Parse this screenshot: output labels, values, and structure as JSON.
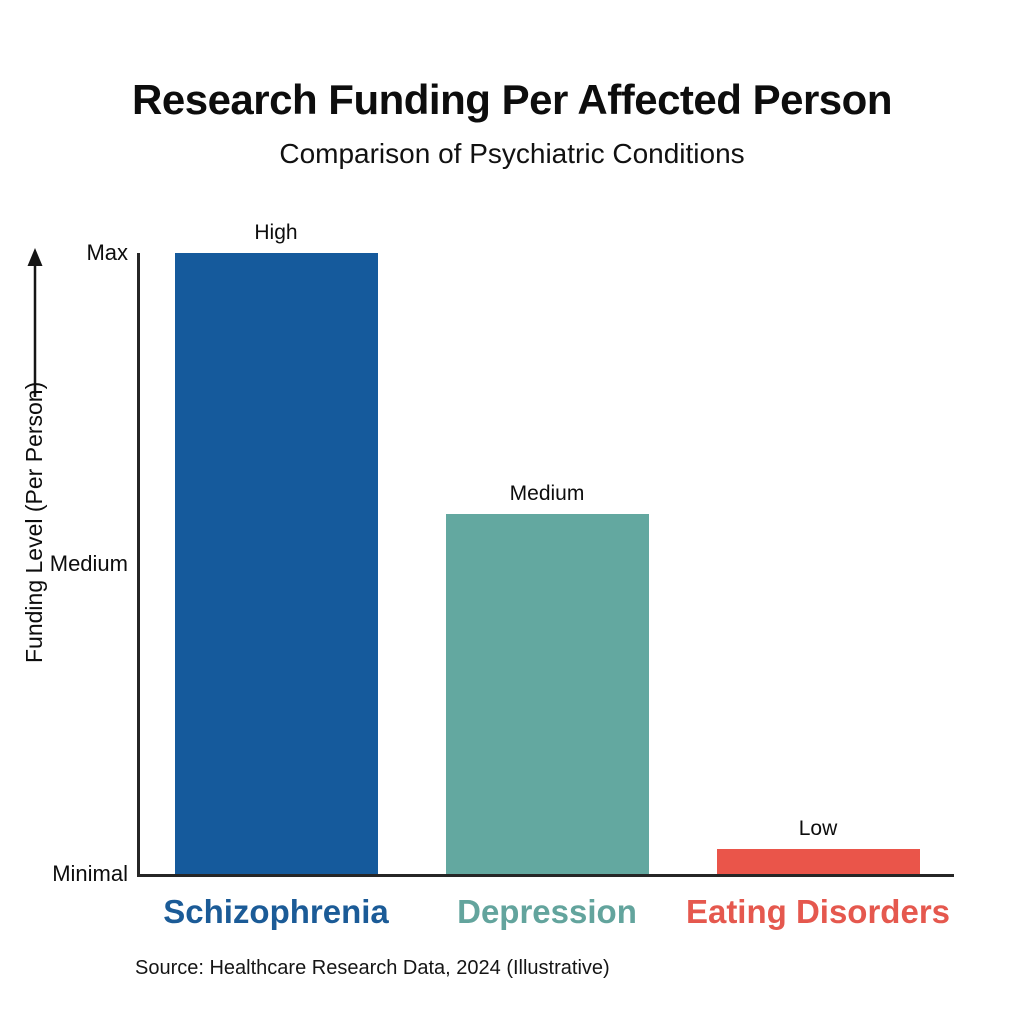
{
  "page": {
    "background_color": "#ffffff"
  },
  "chart_data": {
    "type": "bar",
    "title": "Research Funding Per Affected Person",
    "subtitle": "Comparison of Psychiatric Conditions",
    "ylabel": "Funding Level (Per Person)",
    "xlabel": "",
    "categories": [
      "Schizophrenia",
      "Depression",
      "Eating Disorders"
    ],
    "values": [
      100,
      58,
      4
    ],
    "value_labels": [
      "High",
      "Medium",
      "Low"
    ],
    "bar_colors": [
      "#155A9C",
      "#63A8A0",
      "#EA554A"
    ],
    "category_label_colors": [
      "#1B5B97",
      "#63A49D",
      "#E5584E"
    ],
    "yticks": [
      {
        "label": "Max",
        "value": 100
      },
      {
        "label": "Medium",
        "value": 50
      },
      {
        "label": "Minimal",
        "value": 0
      }
    ],
    "ylim": [
      0,
      100
    ],
    "grid": false,
    "legend": false,
    "axis_color": "#262626",
    "arrow_color": "#151515",
    "source": "Source: Healthcare Research Data, 2024 (Illustrative)"
  }
}
